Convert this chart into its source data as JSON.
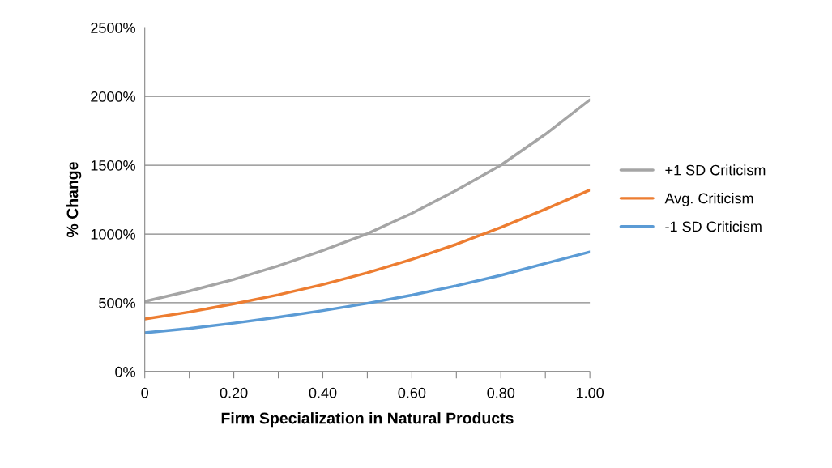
{
  "chart_data": {
    "type": "line",
    "xlabel": "Firm Specialization in Natural Products",
    "ylabel": "% Change",
    "x": [
      0,
      0.1,
      0.2,
      0.3,
      0.4,
      0.5,
      0.6,
      0.7,
      0.8,
      0.9,
      1.0
    ],
    "series": [
      {
        "name": "+1 SD Criticism",
        "color": "#a5a5a5",
        "values": [
          510,
          585,
          670,
          768,
          880,
          1002,
          1150,
          1318,
          1500,
          1725,
          1975
        ]
      },
      {
        "name": "Avg. Criticism",
        "color": "#ed7d31",
        "values": [
          382,
          433,
          492,
          558,
          633,
          718,
          815,
          925,
          1048,
          1180,
          1320
        ]
      },
      {
        "name": "-1 SD Criticism",
        "color": "#5b9bd5",
        "values": [
          282,
          313,
          352,
          395,
          443,
          496,
          556,
          624,
          700,
          786,
          870
        ]
      }
    ],
    "xlim": [
      0,
      1.0
    ],
    "xticks": [
      {
        "value": 0,
        "label": "0"
      },
      {
        "value": 0.1,
        "label": null
      },
      {
        "value": 0.2,
        "label": "0.20"
      },
      {
        "value": 0.3,
        "label": null
      },
      {
        "value": 0.4,
        "label": "0.40"
      },
      {
        "value": 0.5,
        "label": null
      },
      {
        "value": 0.6,
        "label": "0.60"
      },
      {
        "value": 0.7,
        "label": null
      },
      {
        "value": 0.8,
        "label": "0.80"
      },
      {
        "value": 0.9,
        "label": null
      },
      {
        "value": 1.0,
        "label": "1.00"
      }
    ],
    "ylim": [
      0,
      2500
    ],
    "yticks": [
      {
        "value": 0,
        "label": "0%"
      },
      {
        "value": 500,
        "label": "500%"
      },
      {
        "value": 1000,
        "label": "1000%"
      },
      {
        "value": 1500,
        "label": "1500%"
      },
      {
        "value": 2000,
        "label": "2000%"
      },
      {
        "value": 2500,
        "label": "2500%"
      }
    ],
    "grid": "y",
    "legend": "right",
    "marker": "none",
    "line_style": "solid"
  }
}
